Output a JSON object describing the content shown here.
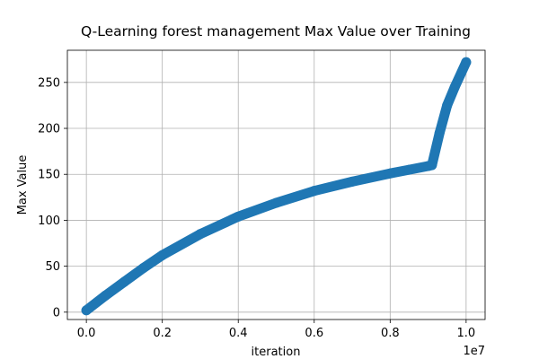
{
  "chart_data": {
    "type": "line",
    "title": "Q-Learning forest management Max Value over Training",
    "xlabel": "iteration",
    "ylabel": "Max Value",
    "x_offset_label": "1e7",
    "xlim": [
      -0.05,
      1.05
    ],
    "ylim": [
      -8,
      285
    ],
    "x_ticks": [
      0.0,
      0.2,
      0.4,
      0.6,
      0.8,
      1.0
    ],
    "x_tick_labels": [
      "0.0",
      "0.2",
      "0.4",
      "0.6",
      "0.8",
      "1.0"
    ],
    "y_ticks": [
      0,
      50,
      100,
      150,
      200,
      250
    ],
    "y_tick_labels": [
      "0",
      "50",
      "100",
      "150",
      "200",
      "250"
    ],
    "grid": true,
    "series": [
      {
        "color": "#1f77b4",
        "marker": "o",
        "x": [
          0.0,
          0.05,
          0.1,
          0.15,
          0.2,
          0.3,
          0.4,
          0.5,
          0.6,
          0.7,
          0.8,
          0.85,
          0.9,
          0.91,
          0.93,
          0.95,
          0.97,
          1.0
        ],
        "values": [
          2,
          18,
          33,
          48,
          62,
          85,
          104,
          119,
          132,
          142,
          151,
          155,
          159,
          160,
          195,
          225,
          245,
          272
        ]
      }
    ]
  }
}
